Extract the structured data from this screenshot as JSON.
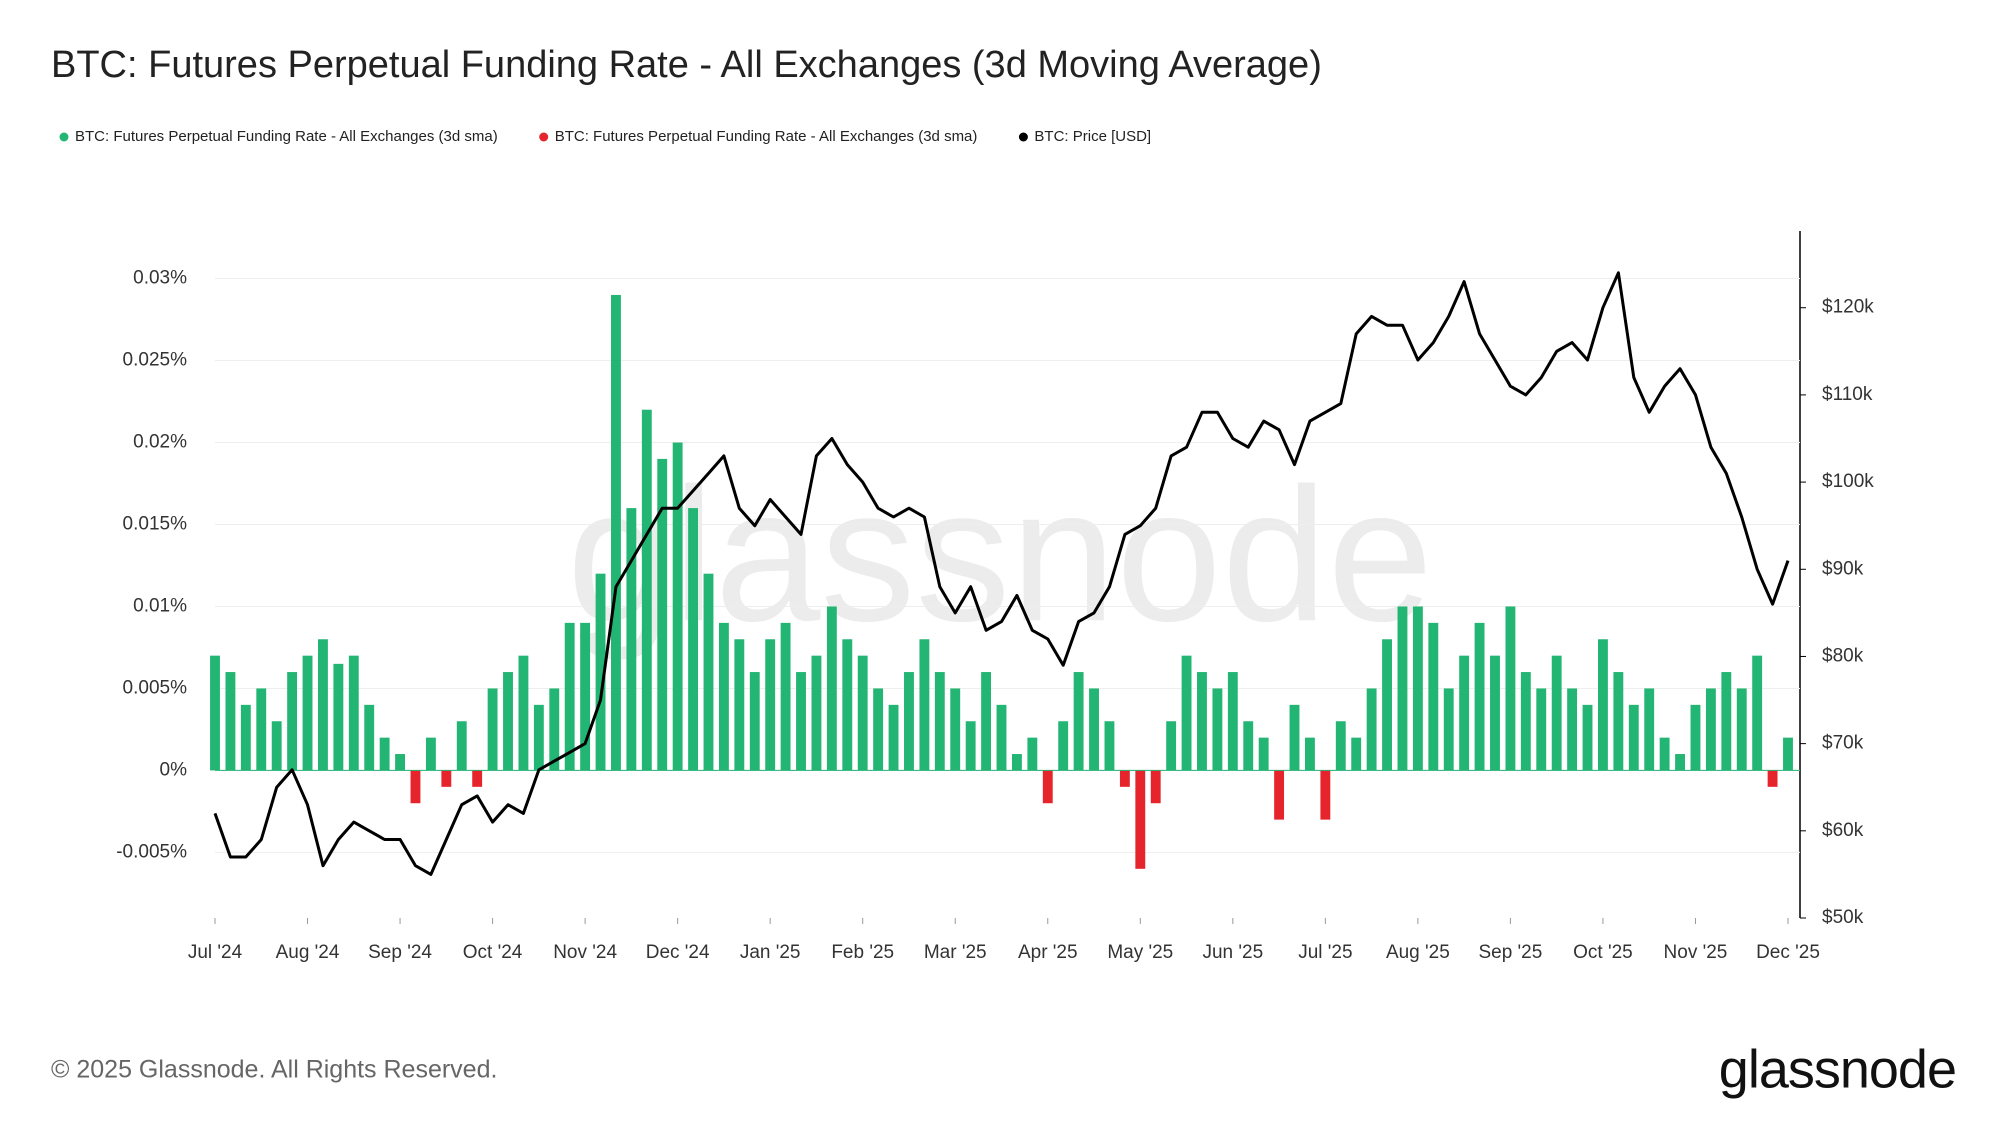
{
  "chart_data": {
    "type": "bar",
    "title": "BTC: Futures Perpetual Funding Rate - All Exchanges (3d Moving Average)",
    "categories": [
      "Jul '24",
      null,
      null,
      null,
      null,
      null,
      "Aug '24",
      null,
      null,
      null,
      null,
      null,
      "Sep '24",
      null,
      null,
      null,
      null,
      null,
      "Oct '24",
      null,
      null,
      null,
      null,
      null,
      "Nov '24",
      null,
      null,
      null,
      null,
      null,
      "Dec '24",
      null,
      null,
      null,
      null,
      null,
      "Jan '25",
      null,
      null,
      null,
      null,
      null,
      "Feb '25",
      null,
      null,
      null,
      null,
      null,
      "Mar '25",
      null,
      null,
      null,
      null,
      null,
      "Apr '25",
      null,
      null,
      null,
      null,
      null,
      "May '25",
      null,
      null,
      null,
      null,
      null,
      "Jun '25",
      null,
      null,
      null,
      null,
      null,
      "Jul '25",
      null,
      null,
      null,
      null,
      null,
      "Aug '25",
      null,
      null,
      null,
      null,
      null,
      "Sep '25",
      null,
      null,
      null,
      null,
      null,
      "Oct '25",
      null,
      null,
      null,
      null,
      null,
      "Nov '25",
      null,
      null,
      null,
      null,
      null,
      "Dec '25"
    ],
    "series": [
      {
        "name": "BTC: Futures Perpetual Funding Rate - All Exchanges (3d sma)",
        "color": "#22b573",
        "values": [
          0.007,
          0.006,
          0.004,
          0.005,
          0.003,
          0.006,
          0.007,
          0.008,
          0.0065,
          0.007,
          0.004,
          0.002,
          0.001,
          null,
          0.002,
          null,
          0.003,
          null,
          0.005,
          0.006,
          0.007,
          0.004,
          0.005,
          0.009,
          0.009,
          0.012,
          0.029,
          0.016,
          0.022,
          0.019,
          0.02,
          0.016,
          0.012,
          0.009,
          0.008,
          0.006,
          0.008,
          0.009,
          0.006,
          0.007,
          0.01,
          0.008,
          0.007,
          0.005,
          0.004,
          0.006,
          0.008,
          0.006,
          0.005,
          0.003,
          0.006,
          0.004,
          0.001,
          0.002,
          null,
          0.003,
          0.006,
          0.005,
          0.003,
          null,
          null,
          null,
          0.003,
          0.007,
          0.006,
          0.005,
          0.006,
          0.003,
          0.002,
          null,
          0.004,
          0.002,
          null,
          0.003,
          0.002,
          0.005,
          0.008,
          0.01,
          0.01,
          0.009,
          0.005,
          0.007,
          0.009,
          0.007,
          0.01,
          0.006,
          0.005,
          0.007,
          0.005,
          0.004,
          0.008,
          0.006,
          0.004,
          0.005,
          0.002,
          0.001,
          0.004,
          0.005,
          0.006,
          0.005,
          0.007,
          null,
          0.002
        ]
      },
      {
        "name": "BTC: Futures Perpetual Funding Rate - All Exchanges (3d sma)",
        "color": "#e5242b",
        "values": [
          null,
          null,
          null,
          null,
          null,
          null,
          null,
          null,
          null,
          null,
          null,
          null,
          null,
          -0.002,
          null,
          -0.001,
          null,
          -0.001,
          null,
          null,
          null,
          null,
          null,
          null,
          null,
          null,
          null,
          null,
          null,
          null,
          null,
          null,
          null,
          null,
          null,
          null,
          null,
          null,
          null,
          null,
          null,
          null,
          null,
          null,
          null,
          null,
          null,
          null,
          null,
          null,
          null,
          null,
          null,
          null,
          -0.002,
          null,
          null,
          null,
          null,
          -0.001,
          -0.006,
          -0.002,
          null,
          null,
          null,
          null,
          null,
          null,
          null,
          -0.003,
          null,
          null,
          -0.003,
          null,
          null,
          null,
          null,
          null,
          null,
          null,
          null,
          null,
          null,
          null,
          null,
          null,
          null,
          null,
          null,
          null,
          null,
          null,
          null,
          null,
          null,
          null,
          null,
          null,
          null,
          null,
          null,
          -0.001,
          null
        ]
      },
      {
        "name": "BTC: Price [USD]",
        "color": "#000000",
        "axis": "y2",
        "values": [
          62000,
          57000,
          57000,
          59000,
          65000,
          67000,
          63000,
          56000,
          59000,
          61000,
          60000,
          59000,
          59000,
          56000,
          55000,
          59000,
          63000,
          64000,
          61000,
          63000,
          62000,
          67000,
          68000,
          69000,
          70000,
          75000,
          88000,
          91000,
          94000,
          97000,
          97000,
          99000,
          101000,
          103000,
          97000,
          95000,
          98000,
          96000,
          94000,
          103000,
          105000,
          102000,
          100000,
          97000,
          96000,
          97000,
          96000,
          88000,
          85000,
          88000,
          83000,
          84000,
          87000,
          83000,
          82000,
          79000,
          84000,
          85000,
          88000,
          94000,
          95000,
          97000,
          103000,
          104000,
          108000,
          108000,
          105000,
          104000,
          107000,
          106000,
          102000,
          107000,
          108000,
          109000,
          117000,
          119000,
          118000,
          118000,
          114000,
          116000,
          119000,
          123000,
          117000,
          114000,
          111000,
          110000,
          112000,
          115000,
          116000,
          114000,
          120000,
          124000,
          112000,
          108000,
          111000,
          113000,
          110000,
          104000,
          101000,
          96000,
          90000,
          86000,
          91000
        ]
      }
    ],
    "ylim": [
      -0.009,
      0.0329
    ],
    "yticks": [
      {
        "value": -0.005,
        "label": "-0.005%"
      },
      {
        "value": 0,
        "label": "0%"
      },
      {
        "value": 0.005,
        "label": "0.005%"
      },
      {
        "value": 0.01,
        "label": "0.01%"
      },
      {
        "value": 0.015,
        "label": "0.015%"
      },
      {
        "value": 0.02,
        "label": "0.02%"
      },
      {
        "value": 0.025,
        "label": "0.025%"
      },
      {
        "value": 0.03,
        "label": "0.03%"
      }
    ],
    "y2lim": [
      50000,
      128800
    ],
    "y2ticks": [
      {
        "value": 50000,
        "label": "$50k"
      },
      {
        "value": 60000,
        "label": "$60k"
      },
      {
        "value": 70000,
        "label": "$70k"
      },
      {
        "value": 80000,
        "label": "$80k"
      },
      {
        "value": 90000,
        "label": "$90k"
      },
      {
        "value": 100000,
        "label": "$100k"
      },
      {
        "value": 110000,
        "label": "$110k"
      },
      {
        "value": 120000,
        "label": "$120k"
      }
    ],
    "grid": true,
    "legend": "top-left"
  },
  "watermark": "glassnode",
  "copyright": "© 2025 Glassnode. All Rights Reserved.",
  "logo": "glassnode"
}
